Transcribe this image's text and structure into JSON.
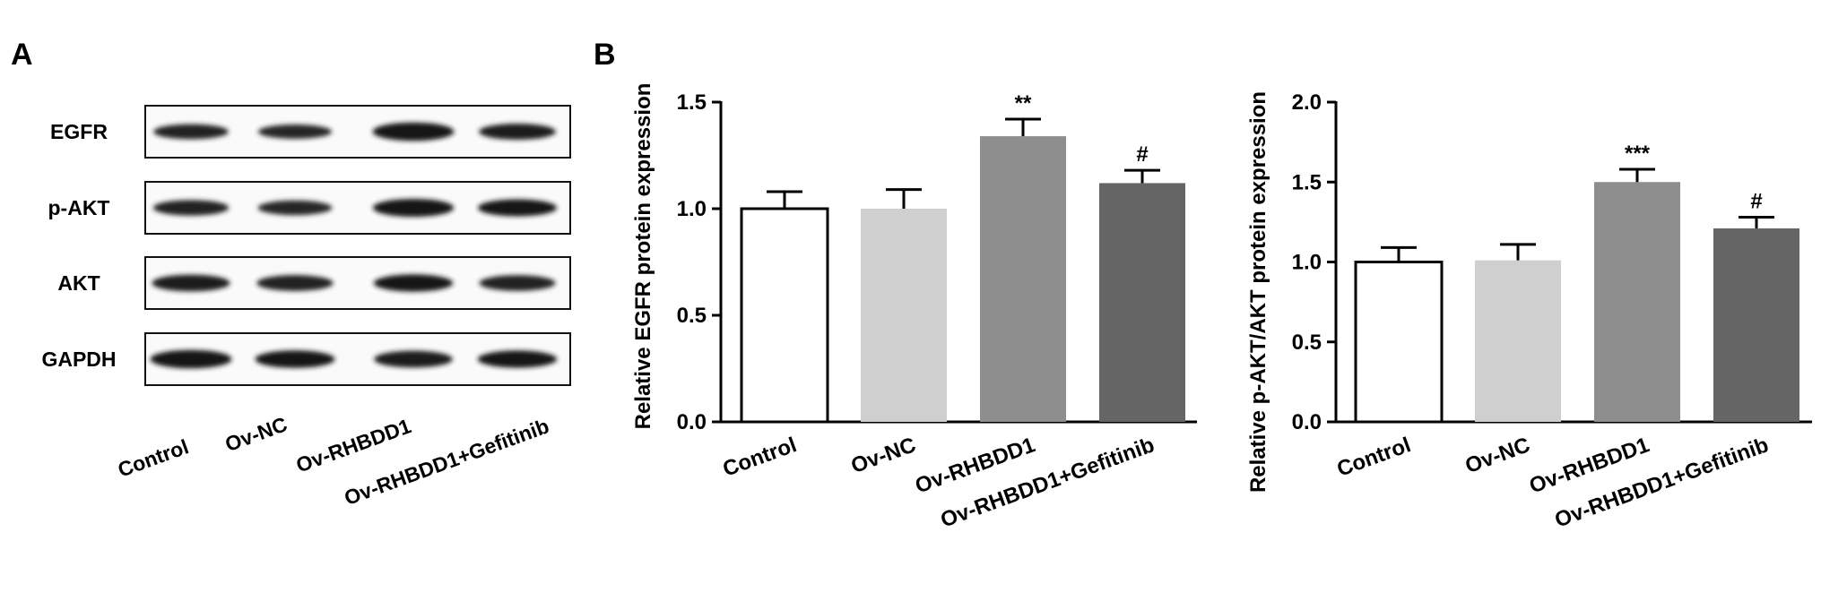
{
  "panels": {
    "a": "A",
    "b": "B"
  },
  "blot": {
    "rows": [
      "EGFR",
      "p-AKT",
      "AKT",
      "GAPDH"
    ],
    "categories": [
      "Control",
      "Ov-NC",
      "Ov-RHBDD1",
      "Ov-RHBDD1+Gefitinib"
    ],
    "band_intensity": [
      [
        0.62,
        0.55,
        0.95,
        0.72
      ],
      [
        0.66,
        0.58,
        0.92,
        0.82
      ],
      [
        0.78,
        0.7,
        0.84,
        0.68
      ],
      [
        0.95,
        0.86,
        0.8,
        0.84
      ]
    ]
  },
  "chart_data": [
    {
      "type": "bar",
      "categories": [
        "Control",
        "Ov-NC",
        "Ov-RHBDD1",
        "Ov-RHBDD1+Gefitinib"
      ],
      "values": [
        1.0,
        1.0,
        1.34,
        1.12
      ],
      "errors": [
        0.08,
        0.09,
        0.08,
        0.06
      ],
      "significance": [
        "",
        "",
        "**",
        "#"
      ],
      "bar_colors": [
        "#ffffff",
        "#cfcfcf",
        "#8e8e8e",
        "#656565"
      ],
      "ylabel": "Relative EGFR protein expression",
      "ylim": [
        0,
        1.5
      ],
      "yticks": [
        0.0,
        0.5,
        1.0,
        1.5
      ],
      "ytick_labels": [
        "0.0",
        "0.5",
        "1.0",
        "1.5"
      ]
    },
    {
      "type": "bar",
      "categories": [
        "Control",
        "Ov-NC",
        "Ov-RHBDD1",
        "Ov-RHBDD1+Gefitinib"
      ],
      "values": [
        1.0,
        1.01,
        1.5,
        1.21
      ],
      "errors": [
        0.09,
        0.1,
        0.08,
        0.07
      ],
      "significance": [
        "",
        "",
        "***",
        "#"
      ],
      "bar_colors": [
        "#ffffff",
        "#cfcfcf",
        "#8e8e8e",
        "#656565"
      ],
      "ylabel": "Relative p-AKT/AKT protein expression",
      "ylim": [
        0,
        2.0
      ],
      "yticks": [
        0.0,
        0.5,
        1.0,
        1.5,
        2.0
      ],
      "ytick_labels": [
        "0.0",
        "0.5",
        "1.0",
        "1.5",
        "2.0"
      ]
    }
  ]
}
